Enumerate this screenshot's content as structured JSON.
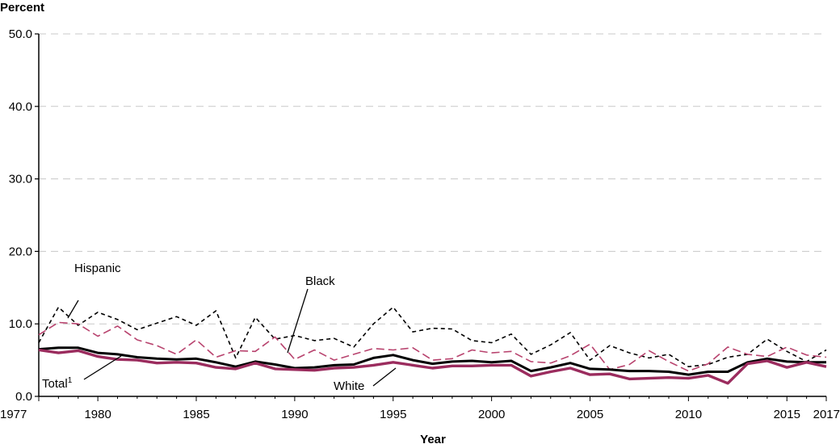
{
  "chart_data": {
    "type": "line",
    "ylabel": "Percent",
    "xlabel": "Year",
    "xlim": [
      1977,
      2017
    ],
    "ylim": [
      0,
      50
    ],
    "y_ticks": [
      "0.0",
      "10.0",
      "20.0",
      "30.0",
      "40.0",
      "50.0"
    ],
    "x_ticks": [
      "1977",
      "1980",
      "1985",
      "1990",
      "1995",
      "2000",
      "2005",
      "2010",
      "2015",
      "2017"
    ],
    "grid": "horizontal-dashed",
    "colors": {
      "black_line": "#000000",
      "maroon": "#9b2c5e",
      "pink_dashed": "#b8436e"
    },
    "x": [
      1977,
      1978,
      1979,
      1980,
      1981,
      1982,
      1983,
      1984,
      1985,
      1986,
      1987,
      1988,
      1989,
      1990,
      1991,
      1992,
      1993,
      1994,
      1995,
      1996,
      1997,
      1998,
      1999,
      2000,
      2001,
      2002,
      2003,
      2004,
      2005,
      2006,
      2007,
      2008,
      2009,
      2010,
      2011,
      2012,
      2013,
      2014,
      2015,
      2016,
      2017
    ],
    "series": [
      {
        "name": "Total",
        "label_sup": "1",
        "style": "solid-black",
        "values": [
          6.5,
          6.7,
          6.7,
          6.0,
          5.8,
          5.4,
          5.2,
          5.1,
          5.2,
          4.7,
          4.1,
          4.8,
          4.4,
          3.9,
          4.0,
          4.3,
          4.4,
          5.3,
          5.7,
          5.0,
          4.5,
          4.8,
          4.9,
          4.7,
          4.9,
          3.5,
          4.0,
          4.6,
          3.8,
          3.7,
          3.5,
          3.5,
          3.4,
          3.0,
          3.4,
          3.4,
          4.7,
          5.2,
          4.8,
          4.7,
          4.7
        ]
      },
      {
        "name": "White",
        "style": "solid-maroon",
        "values": [
          6.4,
          6.0,
          6.3,
          5.5,
          5.1,
          5.0,
          4.6,
          4.7,
          4.6,
          4.0,
          3.8,
          4.6,
          3.8,
          3.7,
          3.6,
          3.9,
          4.0,
          4.3,
          4.7,
          4.3,
          3.9,
          4.2,
          4.2,
          4.3,
          4.3,
          2.8,
          3.4,
          3.9,
          3.0,
          3.1,
          2.4,
          2.5,
          2.6,
          2.5,
          2.9,
          1.8,
          4.5,
          4.9,
          4.0,
          4.7,
          4.1
        ]
      },
      {
        "name": "Black",
        "style": "dashed-pink",
        "values": [
          8.5,
          10.2,
          10.0,
          8.3,
          9.7,
          7.8,
          7.0,
          5.8,
          7.8,
          5.4,
          6.3,
          6.2,
          8.2,
          5.1,
          6.4,
          5.0,
          5.8,
          6.6,
          6.4,
          6.7,
          5.0,
          5.2,
          6.4,
          6.0,
          6.2,
          4.8,
          4.6,
          5.6,
          7.2,
          3.7,
          4.4,
          6.3,
          4.8,
          3.5,
          4.5,
          6.8,
          5.8,
          5.5,
          6.8,
          5.7,
          5.4
        ]
      },
      {
        "name": "Hispanic",
        "style": "dotted-black",
        "values": [
          7.4,
          12.3,
          9.8,
          11.6,
          10.6,
          9.2,
          10.1,
          11.0,
          9.8,
          11.8,
          5.3,
          10.9,
          7.9,
          8.4,
          7.7,
          8.0,
          6.8,
          10.0,
          12.3,
          8.9,
          9.4,
          9.3,
          7.7,
          7.4,
          8.6,
          5.8,
          7.1,
          8.8,
          5.0,
          7.0,
          6.0,
          5.3,
          5.8,
          4.1,
          4.4,
          5.4,
          5.8,
          7.9,
          6.2,
          4.8,
          6.4
        ]
      }
    ]
  }
}
